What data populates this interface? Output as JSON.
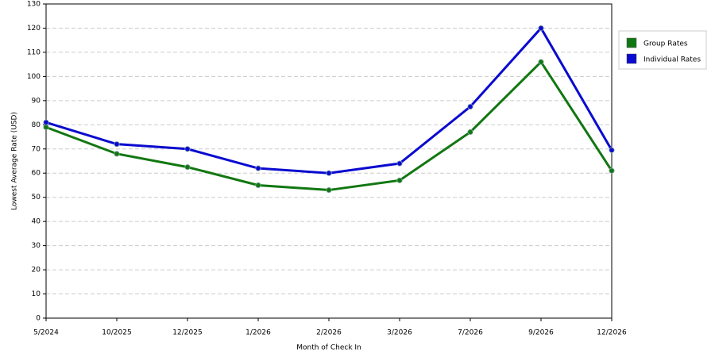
{
  "chart_data": {
    "type": "line",
    "x_label": "Month of Check In",
    "y_label": "Lowest Average Rate (USD)",
    "categories": [
      "5/2024",
      "10/2025",
      "12/2025",
      "1/2026",
      "2/2026",
      "3/2026",
      "7/2026",
      "9/2026",
      "12/2026"
    ],
    "series": [
      {
        "name": "Group Rates",
        "color": "#117711",
        "values": [
          79,
          68,
          62.5,
          55,
          53,
          57,
          77,
          106,
          61
        ]
      },
      {
        "name": "Individual Rates",
        "color": "#0a0ad0",
        "values": [
          81,
          72,
          70,
          62,
          60,
          64,
          87.5,
          120,
          69.5
        ]
      }
    ],
    "ylim": [
      0,
      130
    ],
    "yticks": [
      0,
      10,
      20,
      30,
      40,
      50,
      60,
      70,
      80,
      90,
      100,
      110,
      120,
      130
    ],
    "grid": true,
    "legend": "right"
  }
}
